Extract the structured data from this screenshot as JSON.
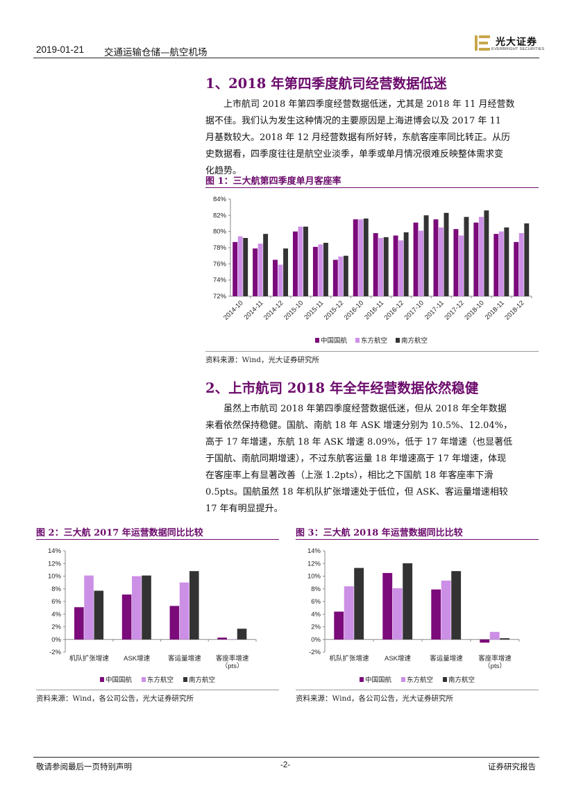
{
  "header": {
    "date": "2019-01-21",
    "title": "交通运输仓储—航空机场",
    "logo_name": "光大证券",
    "logo_sub": "EVERBRIGHT SECURITIES",
    "colors": {
      "brand": "#c9a64a",
      "accent": "#6b0a6b"
    }
  },
  "section1": {
    "title": "1、2018 年第四季度航司经营数据低迷",
    "lines": [
      "上市航司 2018 年第四季度经营数据低迷，尤其是 2018 年 11 月经营数",
      "据不佳。我们认为发生这种情况的主要原因是上海进博会以及 2017 年 11",
      "月基数较大。2018 年 12 月经营数据有所好转，东航客座率同比转正。从历",
      "史数据看，四季度往往是航空业淡季，单季或单月情况很难反映整体需求变",
      "化趋势。"
    ]
  },
  "figure1": {
    "title": "图 1：三大航第四季度单月客座率",
    "source": "资料来源：Wind，光大证券研究所"
  },
  "section2": {
    "title": "2、上市航司 2018 年全年经营数据依然稳健",
    "lines": [
      "虽然上市航司 2018 年第四季度经营数据低迷，但从 2018 年全年数据",
      "来看依然保持稳健。国航、南航 18 年 ASK 增速分别为 10.5%、12.04%，",
      "高于 17 年增速，东航 18 年 ASK 增速 8.09%，低于 17 年增速（也显著低",
      "于国航、南航同期增速），不过东航客运量 18 年增速高于 17 年增速，体现",
      "在客座率上有显著改善（上涨 1.2pts），相比之下国航 18 年客座率下滑",
      "0.5pts。国航虽然 18 年机队扩张增速处于低位，但 ASK、客运量增速相较",
      "17 年有明显提升。"
    ]
  },
  "figure2": {
    "title": "图 2：三大航 2017 年运营数据同比比较",
    "source": "资料来源：Wind，各公司公告，光大证券研究所"
  },
  "figure3": {
    "title": "图 3：三大航 2018 年运营数据同比比较",
    "source": "资料来源：Wind，各公司公告，光大证券研究所"
  },
  "footer": {
    "left": "敬请参阅最后一页特别声明",
    "center": "-2-",
    "right": "证券研究报告"
  },
  "chart_data": [
    {
      "type": "bar",
      "categories": [
        "2014-10",
        "2014-11",
        "2014-12",
        "2015-10",
        "2015-11",
        "2015-12",
        "2016-10",
        "2016-11",
        "2016-12",
        "2017-10",
        "2017-11",
        "2017-12",
        "2018-10",
        "2018-11",
        "2018-12"
      ],
      "series": [
        {
          "name": "中国国航",
          "color": "#7b0a7b",
          "values": [
            78.7,
            77.9,
            76.5,
            80.0,
            78.1,
            76.5,
            81.5,
            79.8,
            79.5,
            81.1,
            81.5,
            80.3,
            81.1,
            79.7,
            78.7
          ]
        },
        {
          "name": "东方航空",
          "color": "#cc8fe6",
          "values": [
            79.4,
            78.5,
            75.9,
            80.6,
            78.4,
            76.9,
            81.5,
            79.2,
            78.9,
            80.1,
            80.5,
            79.5,
            81.8,
            80.0,
            79.8
          ]
        },
        {
          "name": "南方航空",
          "color": "#333333",
          "values": [
            79.2,
            79.7,
            77.9,
            80.6,
            78.6,
            77.0,
            81.6,
            79.3,
            79.9,
            82.0,
            82.3,
            81.8,
            82.6,
            80.5,
            81.0
          ]
        }
      ],
      "yticks": [
        "72%",
        "74%",
        "76%",
        "78%",
        "80%",
        "82%",
        "84%"
      ],
      "ylim": [
        72,
        84
      ],
      "legend": "bottom",
      "grid": false
    },
    {
      "type": "bar",
      "categories": [
        "机队扩张增速",
        "ASK增速",
        "客运量增速",
        "客座率增速\n（pts）"
      ],
      "series": [
        {
          "name": "中国国航",
          "color": "#7b0a7b",
          "values": [
            5.1,
            7.1,
            5.3,
            0.3
          ]
        },
        {
          "name": "东方航空",
          "color": "#cc8fe6",
          "values": [
            10.1,
            10.0,
            9.0,
            0.0
          ]
        },
        {
          "name": "南方航空",
          "color": "#333333",
          "values": [
            7.7,
            10.1,
            10.8,
            1.7
          ]
        }
      ],
      "yticks": [
        "14%",
        "12%",
        "10%",
        "8%",
        "6%",
        "4%",
        "2%",
        "0%",
        "-2%"
      ],
      "ylim": [
        -2,
        14
      ],
      "legend": "bottom",
      "grid": false
    },
    {
      "type": "bar",
      "categories": [
        "机队扩张增速",
        "ASK增速",
        "客运量增速",
        "客座率增速\n（pts）"
      ],
      "series": [
        {
          "name": "中国国航",
          "color": "#7b0a7b",
          "values": [
            4.4,
            10.5,
            7.9,
            -0.5
          ]
        },
        {
          "name": "东方航空",
          "color": "#cc8fe6",
          "values": [
            8.4,
            8.1,
            9.3,
            1.2
          ]
        },
        {
          "name": "南方航空",
          "color": "#333333",
          "values": [
            11.3,
            12.04,
            10.8,
            0.2
          ]
        }
      ],
      "yticks": [
        "14%",
        "12%",
        "10%",
        "8%",
        "6%",
        "4%",
        "2%",
        "0%",
        "-2%"
      ],
      "ylim": [
        -2,
        14
      ],
      "legend": "bottom",
      "grid": false
    }
  ]
}
